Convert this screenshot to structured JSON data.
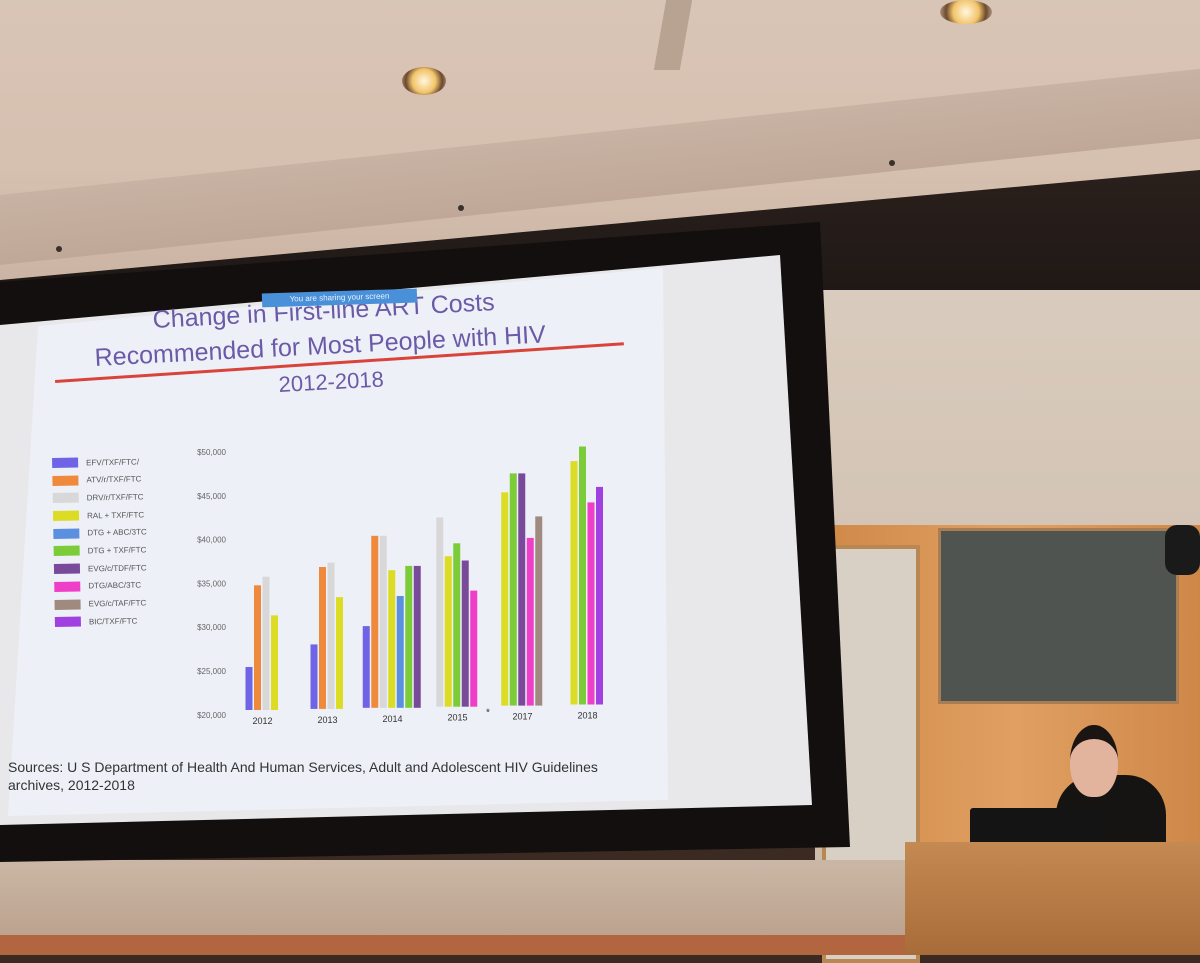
{
  "slide": {
    "banner": "You are sharing your screen",
    "title_line1": "Change in First-line ART Costs",
    "title_line2": "Recommended for Most People with HIV",
    "title_line3": "2012-2018",
    "sources_line1": "Sources: U S Department of Health And Human Services, Adult and Adolescent HIV Guidelines",
    "sources_line2": "archives, 2012-2018"
  },
  "chart_data": {
    "type": "bar",
    "categories": [
      "2012",
      "2013",
      "2014",
      "2015",
      "2017",
      "2018"
    ],
    "yticks": [
      "$50,000",
      "$45,000",
      "$40,000",
      "$35,000",
      "$30,000",
      "$25,000",
      "$20,000"
    ],
    "ylim": [
      20000,
      50000
    ],
    "legend": [
      {
        "name": "EFV/TXF/FTC/",
        "color": "#6f63e6"
      },
      {
        "name": "ATV/r/TXF/FTC",
        "color": "#ef8a3c"
      },
      {
        "name": "DRV/r/TXF/FTC",
        "color": "#d8d8d8"
      },
      {
        "name": "RAL + TXF/FTC",
        "color": "#dcdc25"
      },
      {
        "name": "DTG + ABC/3TC",
        "color": "#5b8fe0"
      },
      {
        "name": "DTG + TXF/FTC",
        "color": "#7ccc3a"
      },
      {
        "name": "EVG/c/TDF/FTC",
        "color": "#7a4a9a"
      },
      {
        "name": "DTG/ABC/3TC",
        "color": "#ef3fc8"
      },
      {
        "name": "EVG/c/TAF/FTC",
        "color": "#a08a80"
      },
      {
        "name": "BIC/TXF/FTC",
        "color": "#a040e0"
      }
    ],
    "series": [
      {
        "name": "EFV/TXF/FTC/",
        "values": [
          25000,
          27500,
          29500,
          null,
          null,
          null
        ]
      },
      {
        "name": "ATV/r/TXF/FTC",
        "values": [
          34500,
          36500,
          40000,
          null,
          null,
          null
        ]
      },
      {
        "name": "DRV/r/TXF/FTC",
        "values": [
          35500,
          37000,
          40000,
          42000,
          null,
          null
        ]
      },
      {
        "name": "RAL + TXF/FTC",
        "values": [
          31000,
          33000,
          36000,
          37500,
          44800,
          48300
        ]
      },
      {
        "name": "DTG + ABC/3TC",
        "values": [
          null,
          null,
          33000,
          null,
          null,
          null
        ]
      },
      {
        "name": "DTG + TXF/FTC",
        "values": [
          null,
          null,
          36500,
          39000,
          47000,
          50000
        ]
      },
      {
        "name": "EVG/c/TDF/FTC",
        "values": [
          null,
          null,
          36500,
          37000,
          47000,
          null
        ]
      },
      {
        "name": "DTG/ABC/3TC",
        "values": [
          null,
          null,
          null,
          33500,
          39500,
          43500
        ]
      },
      {
        "name": "EVG/c/TAF/FTC",
        "values": [
          null,
          null,
          null,
          null,
          42000,
          null
        ]
      },
      {
        "name": "BIC/TXF/FTC",
        "values": [
          null,
          null,
          null,
          null,
          null,
          45300
        ]
      }
    ],
    "annotation": "*"
  }
}
